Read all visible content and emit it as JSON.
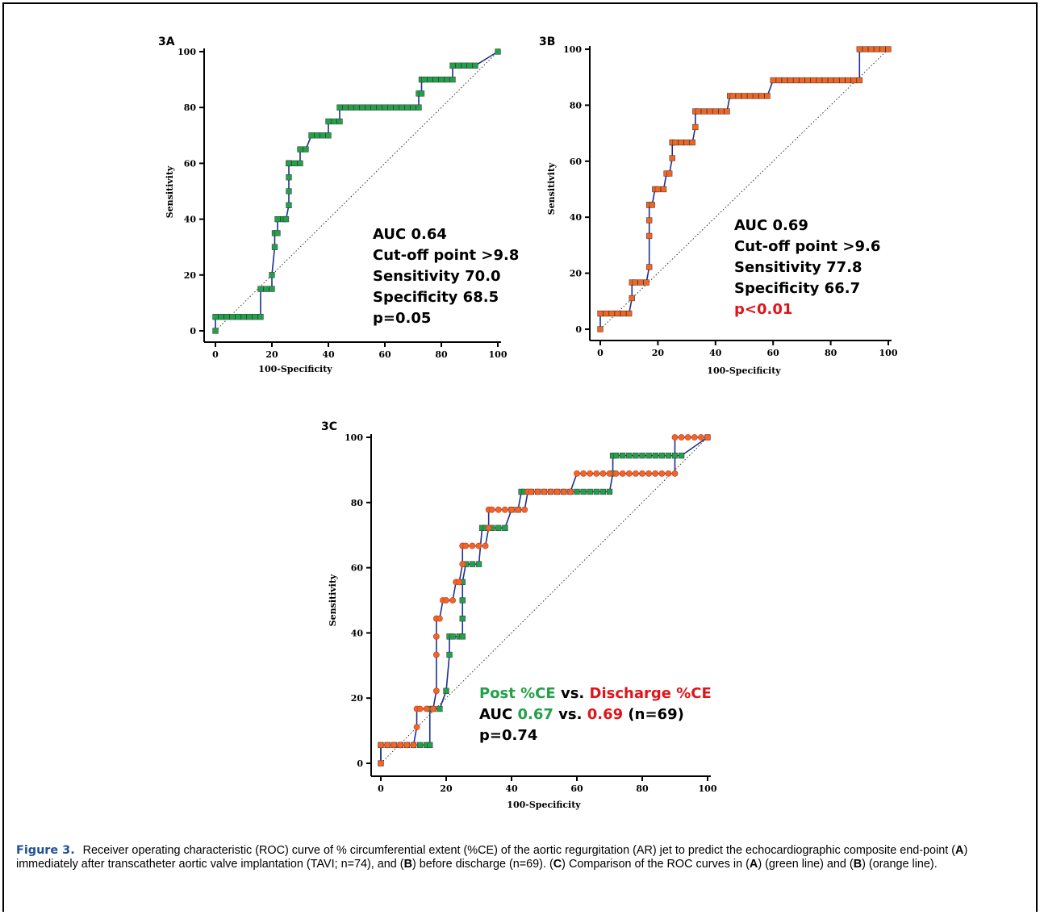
{
  "colors": {
    "green": "#22a04a",
    "orange": "#f26522",
    "red": "#e0151b",
    "curve_line": "#1f2f8f",
    "caption_label": "#1f4f9c"
  },
  "panels": {
    "a": {
      "label": "3A",
      "xlabel": "100-Specificity",
      "ylabel": "Sensitivity",
      "stats": [
        "AUC 0.64",
        "Cut-off point >9.8",
        "Sensitivity 70.0",
        "Specificity 68.5",
        "p=0.05"
      ]
    },
    "b": {
      "label": "3B",
      "xlabel": "100-Specificity",
      "ylabel": "Sensitivity",
      "stats": [
        "AUC 0.69",
        "Cut-off point >9.6",
        "Sensitivity 77.8",
        "Specificity 66.7",
        "p<0.01"
      ]
    },
    "c": {
      "label": "3C",
      "xlabel": "100-Specificity",
      "ylabel": "Sensitivity",
      "stats": {
        "line1": {
          "a": "Post %CE",
          "b": " vs. ",
          "c": "Discharge %CE"
        },
        "line2": {
          "a": "AUC ",
          "b": "0.67",
          "c": " vs. ",
          "d": "0.69",
          "e": " (n=69)"
        },
        "line3": "p=0.74"
      }
    }
  },
  "caption": {
    "label": "Figure 3.",
    "t1": "Receiver operating characteristic (ROC) curve of % circumferential extent (%CE) of the aortic regurgitation (AR) jet to predict the echocardiographic composite end-point (",
    "A1": "A",
    "t2": ") immediately after transcatheter aortic valve implantation (TAVI; n=74), and (",
    "B1": "B",
    "t3": ") before discharge (n=69). (",
    "C1": "C",
    "t4": ") Comparison of the ROC curves in (",
    "A2": "A",
    "t5": ") (green line) and (",
    "B2": "B",
    "t6": ") (orange line)."
  },
  "chart_data": [
    {
      "type": "line",
      "name": "3A",
      "xlabel": "100-Specificity",
      "ylabel": "Sensitivity",
      "xlim": [
        0,
        100
      ],
      "ylim": [
        0,
        100
      ],
      "x_ticks": [
        0,
        20,
        40,
        60,
        80,
        100
      ],
      "y_ticks": [
        0,
        20,
        40,
        60,
        80,
        100
      ],
      "reference_line": [
        [
          0,
          0
        ],
        [
          100,
          100
        ]
      ],
      "series": [
        {
          "color": "#22a04a",
          "marker": "square",
          "x": [
            0,
            0,
            2,
            4,
            6,
            8,
            10,
            12,
            14,
            16,
            16,
            18,
            20,
            20,
            21,
            21,
            22,
            22,
            24,
            25,
            26,
            26,
            26,
            26,
            26,
            26,
            28,
            30,
            30,
            32,
            34,
            36,
            38,
            40,
            40,
            42,
            44,
            44,
            46,
            48,
            50,
            52,
            54,
            56,
            58,
            60,
            62,
            64,
            66,
            68,
            70,
            72,
            72,
            73,
            73,
            74,
            76,
            78,
            80,
            82,
            84,
            84,
            86,
            88,
            90,
            92,
            100
          ],
          "y": [
            0,
            5,
            5,
            5,
            5,
            5,
            5,
            5,
            5,
            5,
            15,
            15,
            15,
            20,
            30,
            35,
            35,
            40,
            40,
            40,
            45,
            50,
            55,
            60,
            60,
            60,
            60,
            60,
            65,
            65,
            70,
            70,
            70,
            70,
            75,
            75,
            75,
            80,
            80,
            80,
            80,
            80,
            80,
            80,
            80,
            80,
            80,
            80,
            80,
            80,
            80,
            80,
            85,
            85,
            90,
            90,
            90,
            90,
            90,
            90,
            90,
            95,
            95,
            95,
            95,
            95,
            100
          ]
        }
      ]
    },
    {
      "type": "line",
      "name": "3B",
      "xlabel": "100-Specificity",
      "ylabel": "Sensitivity",
      "xlim": [
        0,
        100
      ],
      "ylim": [
        0,
        100
      ],
      "x_ticks": [
        0,
        20,
        40,
        60,
        80,
        100
      ],
      "y_ticks": [
        0,
        20,
        40,
        60,
        80,
        100
      ],
      "reference_line": [
        [
          0,
          0
        ],
        [
          100,
          100
        ]
      ],
      "series": [
        {
          "color": "#f26522",
          "marker": "square",
          "x": [
            0,
            0,
            2,
            4,
            6,
            8,
            10,
            11,
            11,
            12,
            14,
            16,
            17,
            17,
            17,
            17,
            17,
            18,
            19,
            20,
            22,
            23,
            24,
            25,
            25,
            25,
            26,
            28,
            30,
            32,
            33,
            33,
            34,
            36,
            38,
            40,
            42,
            44,
            45,
            46,
            48,
            50,
            52,
            54,
            56,
            58,
            60,
            62,
            64,
            66,
            68,
            70,
            72,
            74,
            76,
            78,
            80,
            82,
            84,
            86,
            88,
            90,
            90,
            92,
            94,
            96,
            98,
            100
          ],
          "y": [
            0,
            5.6,
            5.6,
            5.6,
            5.6,
            5.6,
            5.6,
            11.1,
            16.7,
            16.7,
            16.7,
            16.7,
            22.2,
            33.3,
            38.9,
            44.4,
            44.4,
            44.4,
            50,
            50,
            50,
            55.6,
            55.6,
            61.1,
            66.7,
            66.7,
            66.7,
            66.7,
            66.7,
            66.7,
            72.2,
            77.8,
            77.8,
            77.8,
            77.8,
            77.8,
            77.8,
            77.8,
            83.3,
            83.3,
            83.3,
            83.3,
            83.3,
            83.3,
            83.3,
            83.3,
            88.9,
            88.9,
            88.9,
            88.9,
            88.9,
            88.9,
            88.9,
            88.9,
            88.9,
            88.9,
            88.9,
            88.9,
            88.9,
            88.9,
            88.9,
            88.9,
            100,
            100,
            100,
            100,
            100,
            100
          ]
        }
      ]
    },
    {
      "type": "line",
      "name": "3C",
      "xlabel": "100-Specificity",
      "ylabel": "Sensitivity",
      "xlim": [
        0,
        100
      ],
      "ylim": [
        0,
        100
      ],
      "x_ticks": [
        0,
        20,
        40,
        60,
        80,
        100
      ],
      "y_ticks": [
        0,
        20,
        40,
        60,
        80,
        100
      ],
      "reference_line": [
        [
          0,
          0
        ],
        [
          100,
          100
        ]
      ],
      "series": [
        {
          "name": "Post %CE",
          "color": "#22a04a",
          "marker": "square",
          "x": [
            0,
            0,
            2,
            4,
            6,
            8,
            10,
            12,
            14,
            15,
            15,
            16,
            18,
            20,
            21,
            21,
            22,
            24,
            25,
            25,
            25,
            25,
            26,
            28,
            30,
            31,
            32,
            34,
            36,
            38,
            40,
            42,
            43,
            44,
            46,
            48,
            50,
            52,
            54,
            56,
            58,
            60,
            62,
            64,
            66,
            68,
            70,
            71,
            71,
            72,
            74,
            76,
            78,
            80,
            82,
            84,
            86,
            88,
            90,
            92,
            100
          ],
          "y": [
            0,
            5.6,
            5.6,
            5.6,
            5.6,
            5.6,
            5.6,
            5.6,
            5.6,
            5.6,
            16.7,
            16.7,
            16.7,
            22.2,
            33.3,
            38.9,
            38.9,
            38.9,
            38.9,
            44.4,
            50,
            55.6,
            61.1,
            61.1,
            61.1,
            72.2,
            72.2,
            72.2,
            72.2,
            72.2,
            77.8,
            77.8,
            83.3,
            83.3,
            83.3,
            83.3,
            83.3,
            83.3,
            83.3,
            83.3,
            83.3,
            83.3,
            83.3,
            83.3,
            83.3,
            83.3,
            83.3,
            88.9,
            94.4,
            94.4,
            94.4,
            94.4,
            94.4,
            94.4,
            94.4,
            94.4,
            94.4,
            94.4,
            94.4,
            94.4,
            100
          ]
        },
        {
          "name": "Discharge %CE",
          "color": "#f26522",
          "marker": "circle",
          "x": [
            0,
            0,
            2,
            4,
            6,
            8,
            10,
            11,
            11,
            12,
            14,
            16,
            17,
            17,
            17,
            17,
            17,
            18,
            19,
            20,
            22,
            23,
            24,
            25,
            25,
            25,
            26,
            28,
            30,
            32,
            33,
            33,
            34,
            36,
            38,
            40,
            42,
            44,
            45,
            46,
            48,
            50,
            52,
            54,
            56,
            58,
            60,
            62,
            64,
            66,
            68,
            70,
            72,
            74,
            76,
            78,
            80,
            82,
            84,
            86,
            88,
            90,
            90,
            92,
            94,
            96,
            98,
            100
          ],
          "y": [
            0,
            5.6,
            5.6,
            5.6,
            5.6,
            5.6,
            5.6,
            11.1,
            16.7,
            16.7,
            16.7,
            16.7,
            22.2,
            33.3,
            38.9,
            44.4,
            44.4,
            44.4,
            50,
            50,
            50,
            55.6,
            55.6,
            61.1,
            66.7,
            66.7,
            66.7,
            66.7,
            66.7,
            66.7,
            72.2,
            77.8,
            77.8,
            77.8,
            77.8,
            77.8,
            77.8,
            77.8,
            83.3,
            83.3,
            83.3,
            83.3,
            83.3,
            83.3,
            83.3,
            83.3,
            88.9,
            88.9,
            88.9,
            88.9,
            88.9,
            88.9,
            88.9,
            88.9,
            88.9,
            88.9,
            88.9,
            88.9,
            88.9,
            88.9,
            88.9,
            88.9,
            100,
            100,
            100,
            100,
            100,
            100
          ]
        }
      ]
    }
  ]
}
